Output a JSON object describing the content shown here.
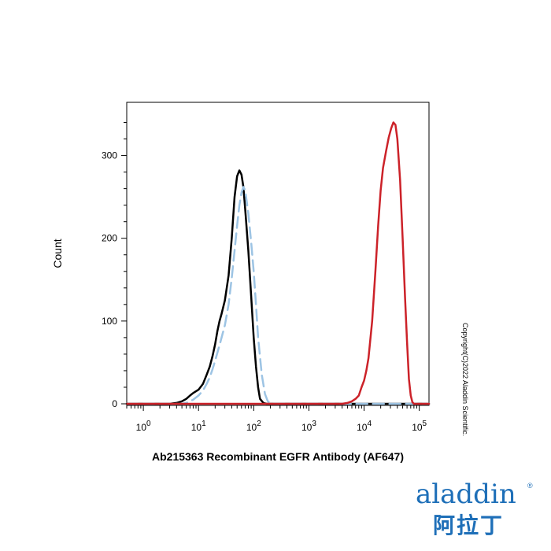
{
  "chart_data": {
    "type": "line",
    "title": "",
    "xlabel": "Ab215363 Recombinant EGFR Antibody (AF647)",
    "ylabel": "Count",
    "x_scale": "log",
    "xlim": [
      0.5,
      150000
    ],
    "ylim": [
      0,
      350
    ],
    "yticks": [
      0,
      100,
      200,
      300
    ],
    "xtick_labels": [
      {
        "base": "10",
        "exp": "0"
      },
      {
        "base": "10",
        "exp": "1"
      },
      {
        "base": "10",
        "exp": "2"
      },
      {
        "base": "10",
        "exp": "3"
      },
      {
        "base": "10",
        "exp": "4"
      },
      {
        "base": "10",
        "exp": "5"
      }
    ],
    "xtick_values": [
      1,
      10,
      100,
      1000,
      10000,
      100000
    ],
    "grid": false,
    "legend": "none",
    "series": [
      {
        "color": "#000000",
        "style": "solid",
        "points": [
          [
            0.5,
            0
          ],
          [
            3,
            0
          ],
          [
            4,
            1
          ],
          [
            5,
            3
          ],
          [
            6,
            6
          ],
          [
            7,
            10
          ],
          [
            8,
            13
          ],
          [
            10,
            17
          ],
          [
            12,
            24
          ],
          [
            14,
            35
          ],
          [
            16,
            45
          ],
          [
            18,
            58
          ],
          [
            20,
            72
          ],
          [
            22,
            88
          ],
          [
            24,
            100
          ],
          [
            26,
            108
          ],
          [
            30,
            125
          ],
          [
            35,
            155
          ],
          [
            40,
            200
          ],
          [
            45,
            250
          ],
          [
            50,
            275
          ],
          [
            55,
            282
          ],
          [
            60,
            277
          ],
          [
            65,
            262
          ],
          [
            70,
            235
          ],
          [
            80,
            185
          ],
          [
            90,
            130
          ],
          [
            100,
            80
          ],
          [
            110,
            45
          ],
          [
            120,
            20
          ],
          [
            130,
            6
          ],
          [
            150,
            1
          ],
          [
            170,
            0
          ],
          [
            150000,
            0
          ]
        ]
      },
      {
        "color": "#9dc4e4",
        "style": "dashed",
        "points": [
          [
            0.5,
            0
          ],
          [
            5,
            0
          ],
          [
            6,
            1
          ],
          [
            8,
            5
          ],
          [
            10,
            10
          ],
          [
            12,
            16
          ],
          [
            14,
            24
          ],
          [
            16,
            32
          ],
          [
            18,
            42
          ],
          [
            20,
            52
          ],
          [
            25,
            75
          ],
          [
            30,
            95
          ],
          [
            35,
            120
          ],
          [
            40,
            152
          ],
          [
            45,
            185
          ],
          [
            50,
            215
          ],
          [
            55,
            240
          ],
          [
            60,
            255
          ],
          [
            65,
            262
          ],
          [
            70,
            258
          ],
          [
            80,
            230
          ],
          [
            90,
            195
          ],
          [
            100,
            160
          ],
          [
            110,
            120
          ],
          [
            120,
            80
          ],
          [
            140,
            35
          ],
          [
            160,
            12
          ],
          [
            180,
            3
          ],
          [
            220,
            0
          ],
          [
            150000,
            0
          ]
        ]
      },
      {
        "color": "#cc2229",
        "style": "solid",
        "points": [
          [
            0.5,
            0
          ],
          [
            4000,
            0
          ],
          [
            5000,
            1
          ],
          [
            6000,
            3
          ],
          [
            7000,
            6
          ],
          [
            8000,
            10
          ],
          [
            9000,
            20
          ],
          [
            10000,
            28
          ],
          [
            11000,
            40
          ],
          [
            12000,
            55
          ],
          [
            14000,
            100
          ],
          [
            16000,
            160
          ],
          [
            18000,
            215
          ],
          [
            20000,
            258
          ],
          [
            22000,
            285
          ],
          [
            25000,
            305
          ],
          [
            28000,
            322
          ],
          [
            31000,
            333
          ],
          [
            34000,
            340
          ],
          [
            37000,
            337
          ],
          [
            40000,
            320
          ],
          [
            45000,
            270
          ],
          [
            50000,
            200
          ],
          [
            55000,
            130
          ],
          [
            60000,
            75
          ],
          [
            65000,
            30
          ],
          [
            70000,
            10
          ],
          [
            75000,
            2
          ],
          [
            80000,
            0
          ],
          [
            150000,
            0
          ]
        ]
      }
    ]
  },
  "copyright": "Copyright(C)2022 Aladdin Scientific.",
  "logo": {
    "latin": "aladdin",
    "reg": "®",
    "cjk": "阿拉丁"
  }
}
